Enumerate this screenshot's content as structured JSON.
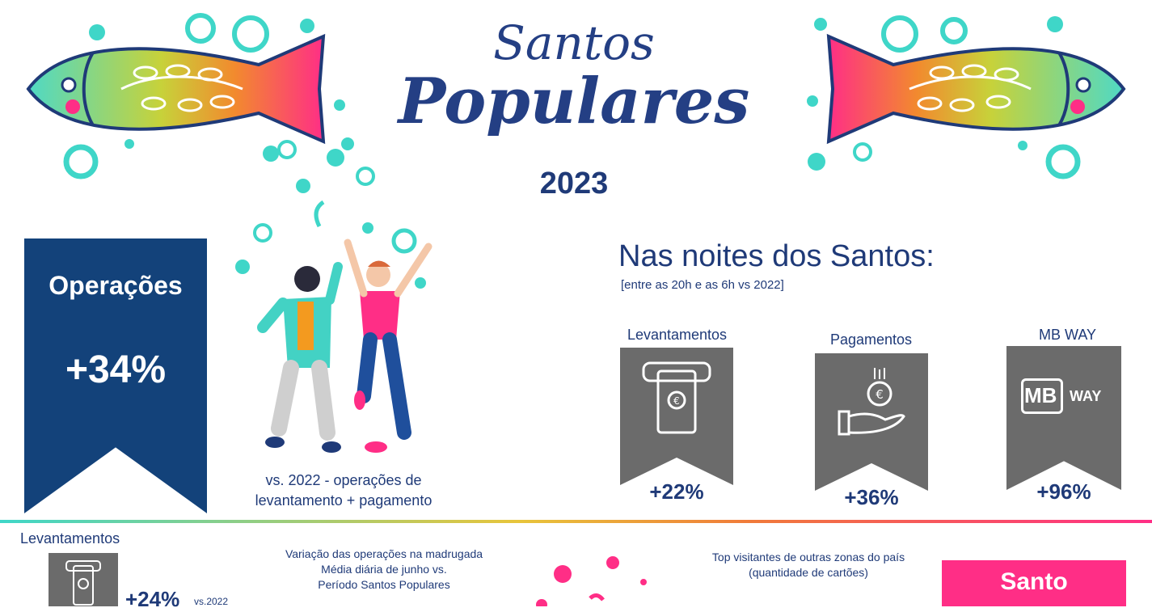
{
  "header": {
    "title_line1": "Santos",
    "title_line2": "Populares",
    "year": "2023"
  },
  "operations": {
    "label": "Operações",
    "value": "+34%",
    "caption_line1": "vs. 2022 - operações de",
    "caption_line2": "levantamento + pagamento"
  },
  "nights": {
    "title": "Nas noites dos Santos:",
    "subtitle": "[entre as 20h e as 6h vs 2022]",
    "cards": [
      {
        "label": "Levantamentos",
        "value": "+22%",
        "icon": "atm-cash-icon"
      },
      {
        "label": "Pagamentos",
        "value": "+36%",
        "icon": "hand-coin-icon"
      },
      {
        "label": "MB WAY",
        "value": "+96%",
        "icon": "mbway-logo"
      }
    ],
    "mbway_logo_text": "MB",
    "mbway_logo_way": "WAY"
  },
  "bottom": {
    "levantamentos_label": "Levantamentos",
    "levantamentos_value": "+24%",
    "levantamentos_vs": "vs.2022",
    "variation_line1": "Variação das operações na madrugada",
    "variation_line2": "Média diária de junho vs.",
    "variation_line3": "Período Santos Populares",
    "visitors_line1": "Top visitantes de outras zonas do país",
    "visitors_line2": "(quantidade de cartões)",
    "santo_badge": "Santo"
  },
  "colors": {
    "navy": "#13427a",
    "teal": "#3fd6c8",
    "pink": "#ff2e86",
    "gray": "#6b6b6b"
  }
}
